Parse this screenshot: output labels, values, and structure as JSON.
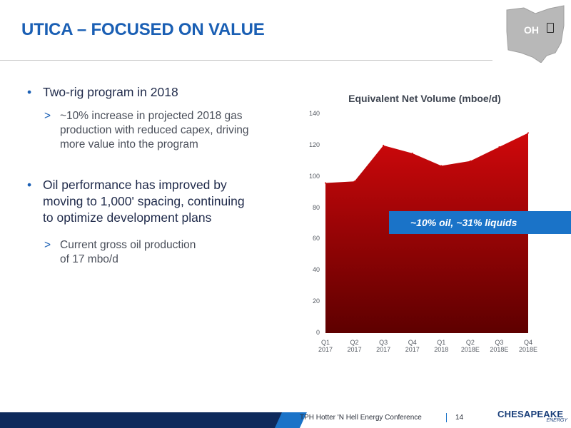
{
  "header": {
    "title": "UTICA – FOCUSED ON VALUE",
    "state_label": "OH"
  },
  "bullets": [
    {
      "text": "Two-rig program in 2018",
      "sub": "~10% increase in projected 2018 gas\nproduction with reduced capex, driving\nmore value into the program"
    },
    {
      "text": "Oil performance has improved by\nmoving to 1,000' spacing, continuing\nto optimize development plans",
      "sub": "Current gross oil production\nof 17 mbo/d"
    }
  ],
  "bullet_glyph": "•",
  "sub_glyph": ">",
  "chart_data": {
    "type": "area",
    "title": "Equivalent Net Volume (mboe/d)",
    "categories": [
      "Q1\n2017",
      "Q2\n2017",
      "Q3\n2017",
      "Q4\n2017",
      "Q1\n2018",
      "Q2\n2018E",
      "Q3\n2018E",
      "Q4\n2018E"
    ],
    "values": [
      96,
      97,
      120,
      115,
      107,
      110,
      119,
      128
    ],
    "ylim": [
      0,
      140
    ],
    "yticks": [
      0,
      20,
      40,
      60,
      80,
      100,
      120,
      140
    ],
    "grid": false,
    "colors": {
      "fill_top": "#d0080b",
      "fill_bottom": "#5e0000"
    },
    "annotation": "~10% oil, ~31% liquids"
  },
  "footer": {
    "conference": "TPH Hotter 'N Hell Energy Conference",
    "page": "14",
    "logo_main": "CHESAPEAKE",
    "logo_sub": "ENERGY"
  },
  "colors": {
    "title": "#1a5fb4",
    "callout": "#1a73c8",
    "map": "#b8b8b8",
    "footer_dark": "#0e2a5c",
    "footer_accent": "#1a73c8"
  },
  "icons": {
    "state_map": "ohio-map-icon",
    "state_marker": "location-marker-icon"
  }
}
